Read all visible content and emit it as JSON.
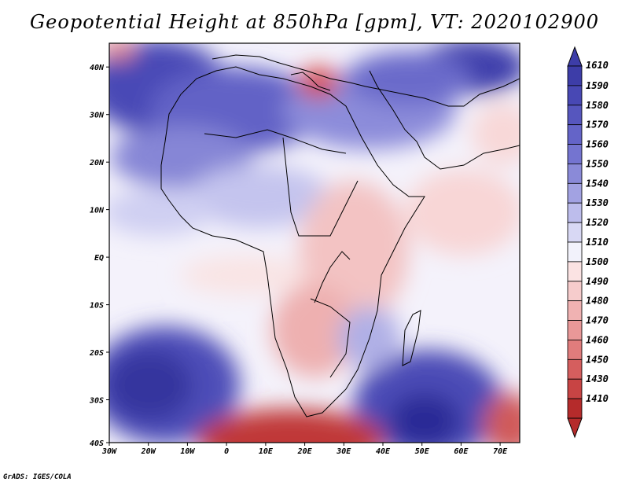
{
  "title": "Geopotential Height at 850hPa [gpm], VT: 2020102900",
  "credit": "GrADS: IGES/COLA",
  "map": {
    "lon_ticks": [
      "30W",
      "20W",
      "10W",
      "0",
      "10E",
      "20E",
      "30E",
      "40E",
      "50E",
      "60E",
      "70E"
    ],
    "lat_ticks": [
      "40N",
      "30N",
      "20N",
      "10N",
      "EQ",
      "10S",
      "20S",
      "30S",
      "40S"
    ],
    "lon_range": [
      -30,
      75
    ],
    "lat_range": [
      -40,
      44
    ]
  },
  "colorbar": {
    "levels": [
      "1610",
      "1590",
      "1580",
      "1570",
      "1560",
      "1550",
      "1540",
      "1530",
      "1520",
      "1510",
      "1500",
      "1490",
      "1480",
      "1470",
      "1460",
      "1450",
      "1430",
      "1410"
    ],
    "colors": [
      "#3d3da8",
      "#4848b4",
      "#5656be",
      "#6464c8",
      "#7474d0",
      "#8a8ad8",
      "#a2a2e2",
      "#bdbdec",
      "#d8d8f4",
      "#f2f2fb",
      "#fbe3e3",
      "#f6cccc",
      "#f0b2b2",
      "#e99898",
      "#e07c7c",
      "#d55e5e",
      "#c84444",
      "#b52b2b"
    ]
  }
}
